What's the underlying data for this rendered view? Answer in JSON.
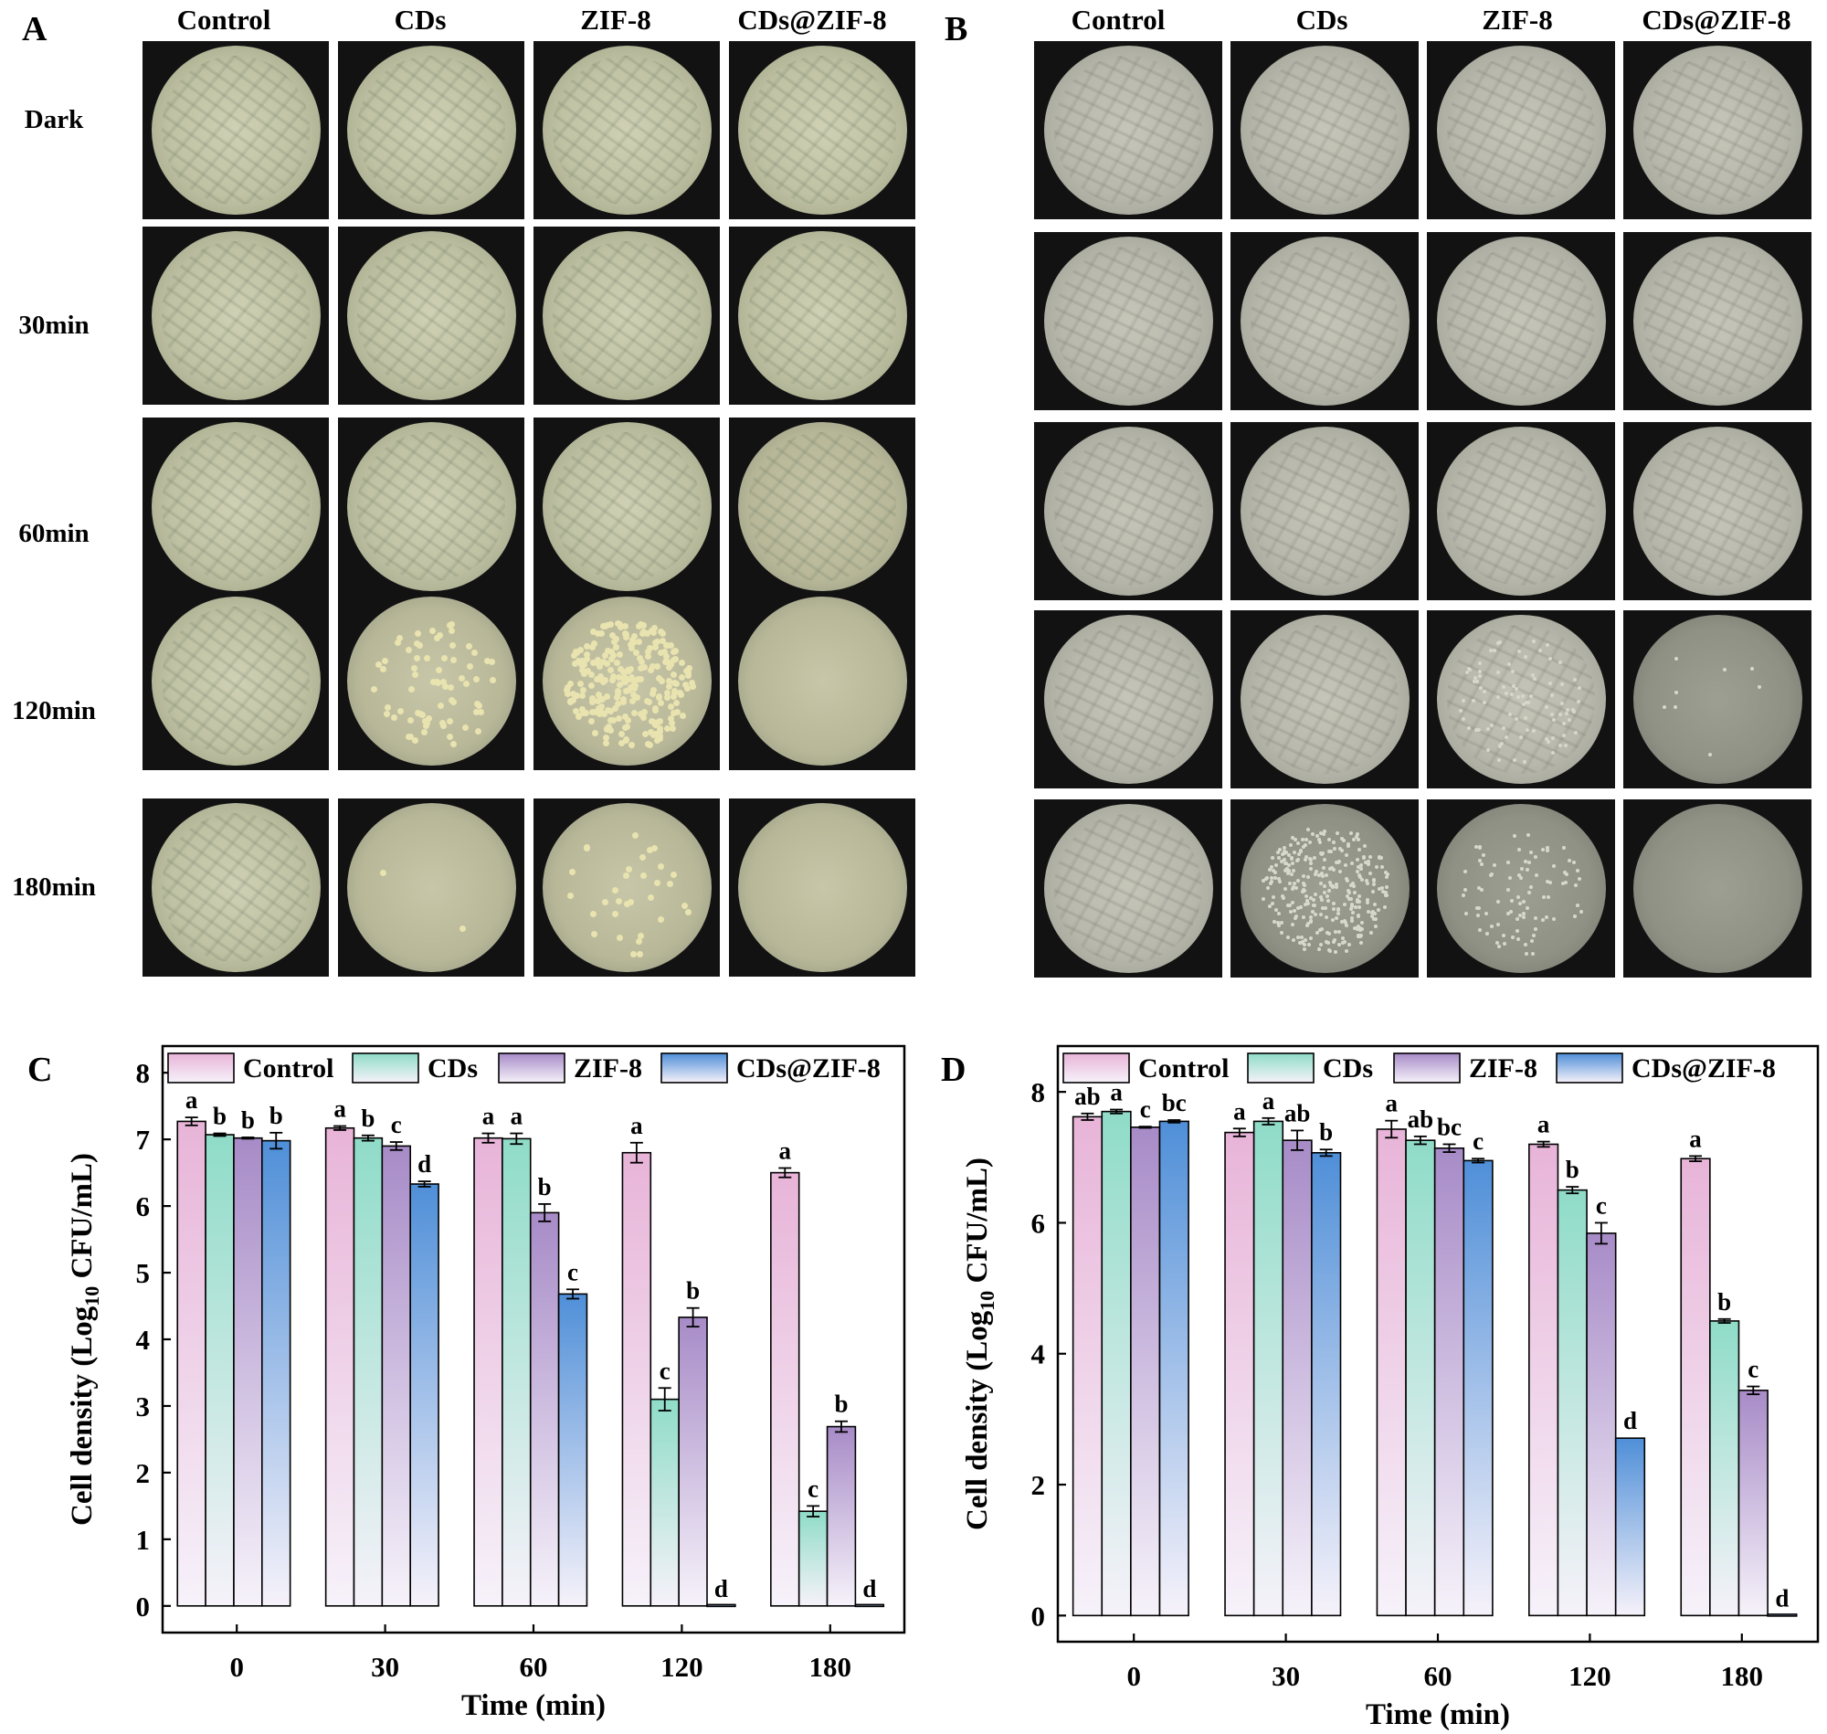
{
  "panelA": {
    "letter": "A",
    "columns": [
      "Control",
      "CDs",
      "ZIF-8",
      "CDs@ZIF-8"
    ],
    "rows": [
      "Dark",
      "30min",
      "60min",
      "120min",
      "180min"
    ]
  },
  "panelB": {
    "letter": "B",
    "columns": [
      "Control",
      "CDs",
      "ZIF-8",
      "CDs@ZIF-8"
    ]
  },
  "colors": {
    "control": "#e8b4d8",
    "cds": "#8fdcc8",
    "zif8": "#a78bc7",
    "cdszif8": "#4f8fd8"
  },
  "chart_data": [
    {
      "panel": "C",
      "type": "bar",
      "categories": [
        "0",
        "30",
        "60",
        "120",
        "180"
      ],
      "xlabel": "Time (min)",
      "ylabel": "Cell density (Log10 CFU/mL)",
      "ylim": [
        -0.4,
        8.4
      ],
      "yticks": [
        0,
        1,
        2,
        3,
        4,
        5,
        6,
        7,
        8
      ],
      "legend_position": "top",
      "series": [
        {
          "name": "Control",
          "values": [
            7.27,
            7.17,
            7.02,
            6.8,
            6.5
          ],
          "errors": [
            0.06,
            0.03,
            0.07,
            0.15,
            0.07
          ],
          "labels": [
            "a",
            "a",
            "a",
            "a",
            "a"
          ]
        },
        {
          "name": "CDs",
          "values": [
            7.07,
            7.02,
            7.01,
            3.1,
            1.42
          ],
          "errors": [
            0.02,
            0.04,
            0.08,
            0.17,
            0.08
          ],
          "labels": [
            "b",
            "b",
            "a",
            "c",
            "c"
          ]
        },
        {
          "name": "ZIF-8",
          "values": [
            7.02,
            6.9,
            5.9,
            4.33,
            2.69
          ],
          "errors": [
            0.01,
            0.06,
            0.13,
            0.14,
            0.08
          ],
          "labels": [
            "b",
            "c",
            "b",
            "b",
            "b"
          ]
        },
        {
          "name": "CDs@ZIF-8",
          "values": [
            6.98,
            6.33,
            4.68,
            0.0,
            0.0
          ],
          "errors": [
            0.12,
            0.04,
            0.07,
            0.0,
            0.0
          ],
          "labels": [
            "b",
            "d",
            "c",
            "d",
            "d"
          ]
        }
      ]
    },
    {
      "panel": "D",
      "type": "bar",
      "categories": [
        "0",
        "30",
        "60",
        "120",
        "180"
      ],
      "xlabel": "Time (min)",
      "ylabel": "Cell density (Log10 CFU/mL)",
      "ylim": [
        -0.4,
        8.7
      ],
      "yticks": [
        0,
        2,
        4,
        6,
        8
      ],
      "legend_position": "top",
      "series": [
        {
          "name": "Control",
          "values": [
            7.62,
            7.38,
            7.43,
            7.2,
            6.98
          ],
          "errors": [
            0.05,
            0.06,
            0.13,
            0.04,
            0.04
          ],
          "labels": [
            "ab",
            "a",
            "a",
            "a",
            "a"
          ]
        },
        {
          "name": "CDs",
          "values": [
            7.7,
            7.55,
            7.26,
            6.5,
            4.5
          ],
          "errors": [
            0.03,
            0.05,
            0.06,
            0.05,
            0.03
          ],
          "labels": [
            "a",
            "a",
            "ab",
            "b",
            "b"
          ]
        },
        {
          "name": "ZIF-8",
          "values": [
            7.46,
            7.26,
            7.14,
            5.84,
            3.44
          ],
          "errors": [
            0.01,
            0.15,
            0.06,
            0.16,
            0.06
          ],
          "labels": [
            "c",
            "ab",
            "bc",
            "c",
            "c"
          ]
        },
        {
          "name": "CDs@ZIF-8",
          "values": [
            7.55,
            7.07,
            6.95,
            2.71,
            0.0
          ],
          "errors": [
            0.02,
            0.05,
            0.03,
            0.0,
            0.0
          ],
          "labels": [
            "bc",
            "b",
            "c",
            "d",
            "d"
          ]
        }
      ]
    }
  ]
}
